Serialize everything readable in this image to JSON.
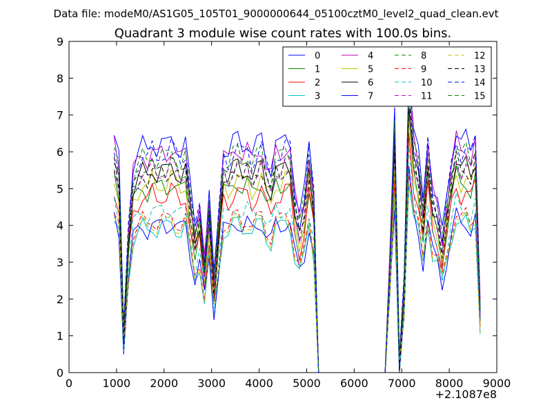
{
  "suptitle": "Data file: modeM0/AS1G05_105T01_9000000644_05100cztM0_level2_quad_clean.evt",
  "chart_data": {
    "type": "line",
    "title": "Quadrant 3 module wise count rates with 100.0s bins.",
    "xlabel": "",
    "ylabel": "",
    "x_offset_label": "+2.1087e8",
    "xlim": [
      0,
      9000
    ],
    "ylim": [
      0,
      9
    ],
    "xticks": [
      0,
      1000,
      2000,
      3000,
      4000,
      5000,
      6000,
      7000,
      8000,
      9000
    ],
    "yticks": [
      0,
      1,
      2,
      3,
      4,
      5,
      6,
      7,
      8,
      9
    ],
    "grid": false,
    "legend_position": "top-right",
    "series": [
      {
        "name": "0",
        "color": "#0000ff",
        "dash": "solid"
      },
      {
        "name": "1",
        "color": "#008000",
        "dash": "solid"
      },
      {
        "name": "2",
        "color": "#ff0000",
        "dash": "solid"
      },
      {
        "name": "3",
        "color": "#00bfbf",
        "dash": "solid"
      },
      {
        "name": "4",
        "color": "#bf00bf",
        "dash": "solid"
      },
      {
        "name": "5",
        "color": "#bfbf00",
        "dash": "solid"
      },
      {
        "name": "6",
        "color": "#000000",
        "dash": "solid"
      },
      {
        "name": "7",
        "color": "#0000ff",
        "dash": "solid"
      },
      {
        "name": "8",
        "color": "#008000",
        "dash": "dashed"
      },
      {
        "name": "9",
        "color": "#ff0000",
        "dash": "dashed"
      },
      {
        "name": "10",
        "color": "#00bfbf",
        "dash": "dashed"
      },
      {
        "name": "11",
        "color": "#bf00bf",
        "dash": "dashed"
      },
      {
        "name": "12",
        "color": "#bfbf00",
        "dash": "dashed"
      },
      {
        "name": "13",
        "color": "#000000",
        "dash": "dashed"
      },
      {
        "name": "14",
        "color": "#0000ff",
        "dash": "dashed"
      },
      {
        "name": "15",
        "color": "#008000",
        "dash": "dashed"
      }
    ],
    "x": [
      950,
      1050,
      1150,
      1250,
      1350,
      1450,
      1550,
      1650,
      1750,
      1850,
      1950,
      2050,
      2150,
      2250,
      2350,
      2450,
      2550,
      2650,
      2750,
      2850,
      2950,
      3050,
      3150,
      3250,
      3350,
      3450,
      3550,
      3650,
      3750,
      3850,
      3950,
      4050,
      4150,
      4250,
      4350,
      4450,
      4550,
      4650,
      4750,
      4850,
      4950,
      5050,
      5150,
      5250,
      5350,
      5450,
      5550,
      5650,
      5750,
      5850,
      5950,
      6050,
      6150,
      6250,
      6350,
      6450,
      6550,
      6650,
      6750,
      6850,
      6950,
      7050,
      7150,
      7250,
      7350,
      7450,
      7550,
      7650,
      7750,
      7850,
      7950,
      8050,
      8150,
      8250,
      8350,
      8450,
      8550,
      8650
    ],
    "series_levels": [
      6.45,
      5.25,
      5.0,
      4.1,
      6.2,
      5.35,
      5.7,
      4.15,
      5.75,
      4.3,
      4.55,
      5.7,
      4.2,
      5.65,
      6.2,
      6.1
    ],
    "shape": [
      1.0,
      0.9,
      0.18,
      0.62,
      0.88,
      0.92,
      0.96,
      0.93,
      0.98,
      0.94,
      0.97,
      0.95,
      0.99,
      0.96,
      0.93,
      0.97,
      0.78,
      0.62,
      0.72,
      0.48,
      0.74,
      0.4,
      0.68,
      0.95,
      0.92,
      0.97,
      0.99,
      0.95,
      0.98,
      0.92,
      0.96,
      0.99,
      0.9,
      0.86,
      0.97,
      0.95,
      0.99,
      0.98,
      0.77,
      0.66,
      0.76,
      0.97,
      0.78,
      0.0,
      0.0,
      0.0,
      0.0,
      0.0,
      0.0,
      0.0,
      0.0,
      0.0,
      0.0,
      0.0,
      0.0,
      0.0,
      0.0,
      0.0,
      0.5,
      1.08,
      0.05,
      0.4,
      1.3,
      1.02,
      0.92,
      0.72,
      1.0,
      0.78,
      0.72,
      0.58,
      0.75,
      0.91,
      1.02,
      0.96,
      0.99,
      0.94,
      1.02,
      0.28
    ]
  }
}
